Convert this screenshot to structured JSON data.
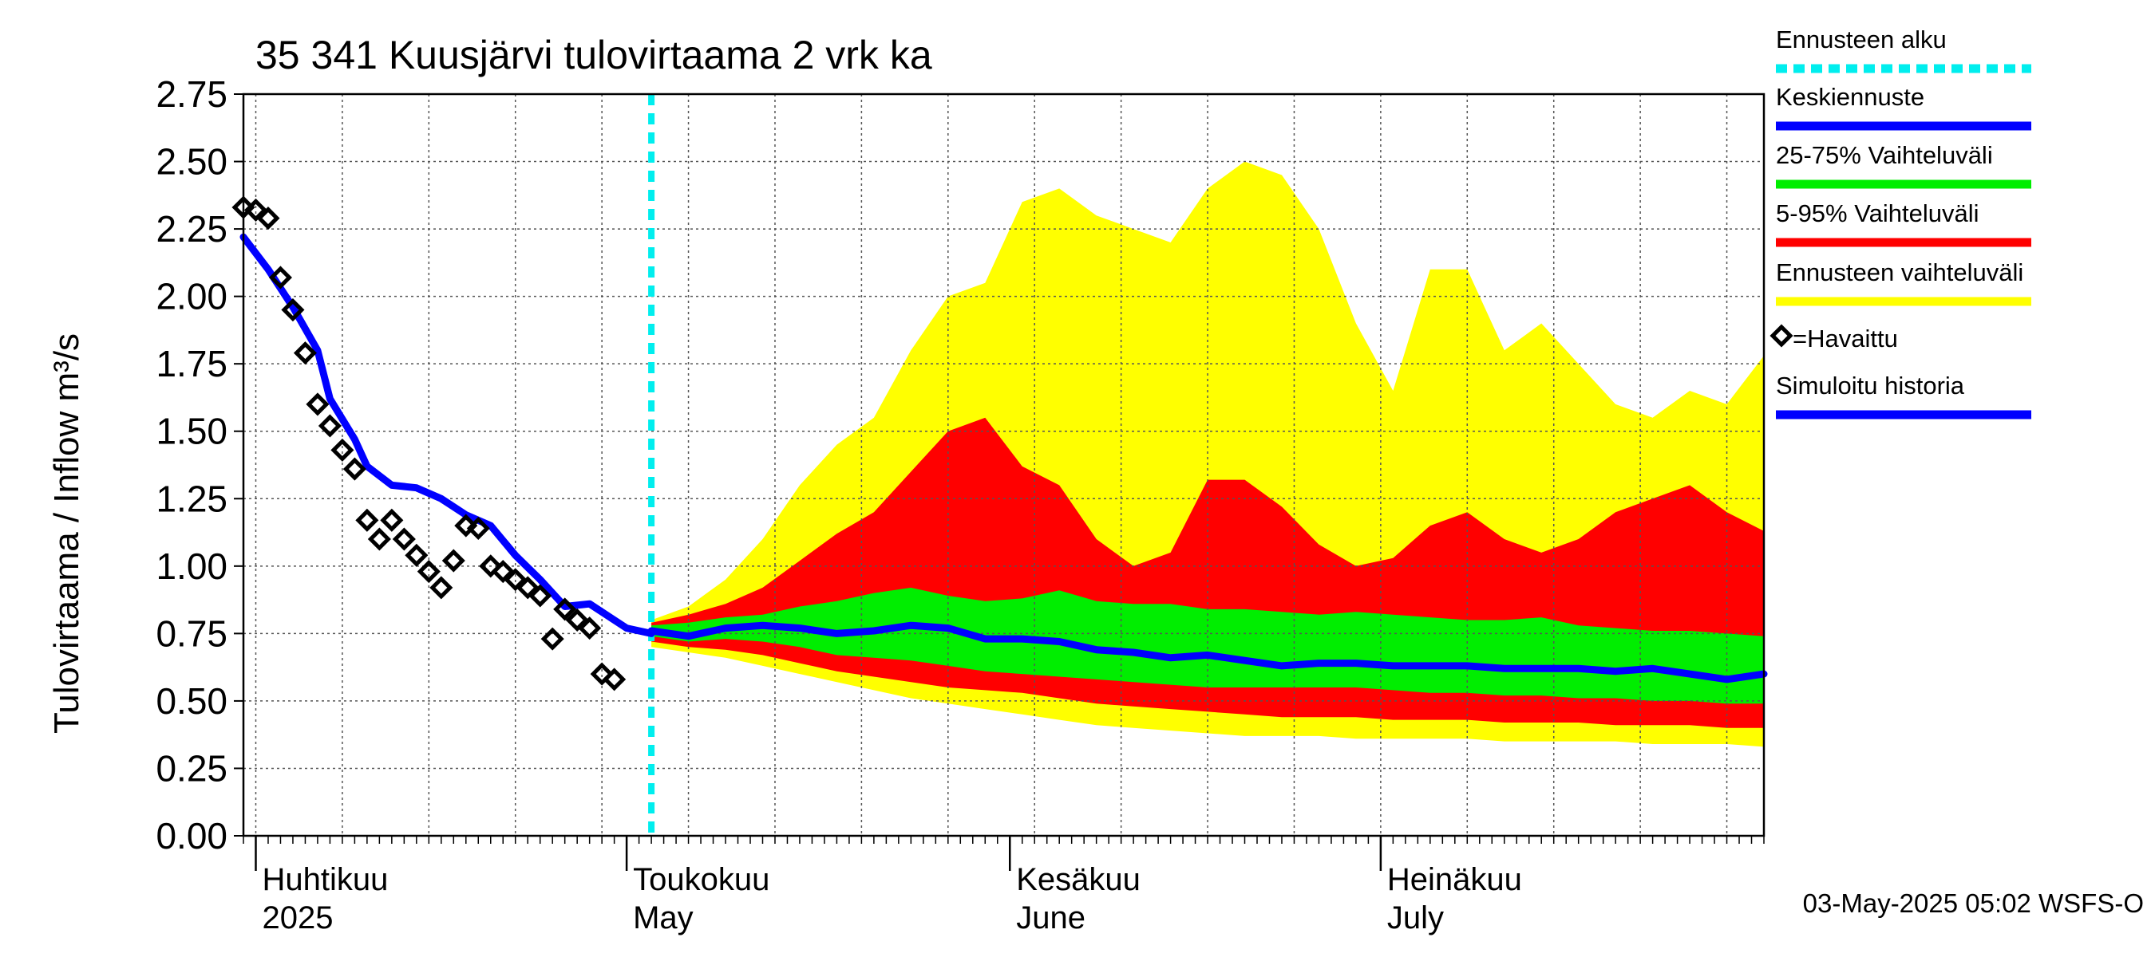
{
  "chart_data": {
    "type": "area",
    "title": "35 341 Kuusjärvi tulovirtaama 2 vrk ka",
    "ylabel": "Tulovirtaama / Inflow    m³/s",
    "ylim": [
      0,
      2.75
    ],
    "yticks": [
      "0.00",
      "0.25",
      "0.50",
      "0.75",
      "1.00",
      "1.25",
      "1.50",
      "1.75",
      "2.00",
      "2.25",
      "2.50",
      "2.75"
    ],
    "xlim": [
      "2025-03-31",
      "2025-08-01"
    ],
    "grid": true,
    "legend_position": "right",
    "months": [
      {
        "start": "2025-04-01",
        "label_fi": "Huhtikuu",
        "label_en": "2025"
      },
      {
        "start": "2025-05-01",
        "label_fi": "Toukokuu",
        "label_en": "May"
      },
      {
        "start": "2025-06-01",
        "label_fi": "Kesäkuu",
        "label_en": "June"
      },
      {
        "start": "2025-07-01",
        "label_fi": "Heinäkuu",
        "label_en": "July"
      }
    ],
    "forecast_start": "2025-05-03",
    "observed": {
      "name": "=Havaittu",
      "x": [
        "2025-03-31",
        "2025-04-01",
        "2025-04-02",
        "2025-04-03",
        "2025-04-04",
        "2025-04-05",
        "2025-04-06",
        "2025-04-07",
        "2025-04-08",
        "2025-04-09",
        "2025-04-10",
        "2025-04-11",
        "2025-04-12",
        "2025-04-13",
        "2025-04-14",
        "2025-04-15",
        "2025-04-16",
        "2025-04-17",
        "2025-04-18",
        "2025-04-19",
        "2025-04-20",
        "2025-04-21",
        "2025-04-22",
        "2025-04-23",
        "2025-04-24",
        "2025-04-25",
        "2025-04-26",
        "2025-04-27",
        "2025-04-28",
        "2025-04-29",
        "2025-04-30",
        "2025-05-01",
        "2025-05-02"
      ],
      "values": [
        2.33,
        2.32,
        2.29,
        2.07,
        1.95,
        1.79,
        1.6,
        1.52,
        1.43,
        1.36,
        1.17,
        1.1,
        1.17,
        1.1,
        1.04,
        0.98,
        0.92,
        1.02,
        1.15,
        1.14,
        1.0,
        0.98,
        0.95,
        0.92,
        0.89,
        0.73,
        0.84,
        0.8,
        0.77,
        0.6,
        0.58,
        null,
        null
      ]
    },
    "simulated_history": {
      "name": "Simuloitu historia",
      "x": [
        "2025-03-31",
        "2025-04-02",
        "2025-04-04",
        "2025-04-06",
        "2025-04-07",
        "2025-04-09",
        "2025-04-10",
        "2025-04-12",
        "2025-04-14",
        "2025-04-16",
        "2025-04-18",
        "2025-04-20",
        "2025-04-22",
        "2025-04-24",
        "2025-04-26",
        "2025-04-28",
        "2025-05-01",
        "2025-05-03"
      ],
      "values": [
        2.22,
        2.1,
        1.96,
        1.8,
        1.62,
        1.47,
        1.37,
        1.3,
        1.29,
        1.25,
        1.19,
        1.15,
        1.04,
        0.95,
        0.85,
        0.86,
        0.77,
        0.75
      ]
    },
    "forecast_dates": [
      "2025-05-03",
      "2025-05-06",
      "2025-05-09",
      "2025-05-12",
      "2025-05-15",
      "2025-05-18",
      "2025-05-21",
      "2025-05-24",
      "2025-05-27",
      "2025-05-30",
      "2025-06-02",
      "2025-06-05",
      "2025-06-08",
      "2025-06-11",
      "2025-06-14",
      "2025-06-17",
      "2025-06-20",
      "2025-06-23",
      "2025-06-26",
      "2025-06-29",
      "2025-07-02",
      "2025-07-05",
      "2025-07-08",
      "2025-07-11",
      "2025-07-14",
      "2025-07-17",
      "2025-07-20",
      "2025-07-23",
      "2025-07-26",
      "2025-07-29",
      "2025-08-01"
    ],
    "series": [
      {
        "name": "Keskiennuste",
        "color": "#0000ff",
        "values": [
          0.76,
          0.74,
          0.77,
          0.78,
          0.77,
          0.75,
          0.76,
          0.78,
          0.77,
          0.73,
          0.73,
          0.72,
          0.69,
          0.68,
          0.66,
          0.67,
          0.65,
          0.63,
          0.64,
          0.64,
          0.63,
          0.63,
          0.63,
          0.62,
          0.62,
          0.62,
          0.61,
          0.62,
          0.6,
          0.58,
          0.6
        ]
      },
      {
        "name": "25-75% Vaihteluväli",
        "color": "#00ee00",
        "lower": [
          0.74,
          0.72,
          0.73,
          0.72,
          0.7,
          0.67,
          0.66,
          0.65,
          0.63,
          0.61,
          0.6,
          0.59,
          0.58,
          0.57,
          0.56,
          0.55,
          0.55,
          0.55,
          0.55,
          0.55,
          0.54,
          0.53,
          0.53,
          0.52,
          0.52,
          0.51,
          0.51,
          0.5,
          0.5,
          0.49,
          0.49
        ],
        "upper": [
          0.78,
          0.79,
          0.81,
          0.82,
          0.85,
          0.87,
          0.9,
          0.92,
          0.89,
          0.87,
          0.88,
          0.91,
          0.87,
          0.86,
          0.86,
          0.84,
          0.84,
          0.83,
          0.82,
          0.83,
          0.82,
          0.81,
          0.8,
          0.8,
          0.81,
          0.78,
          0.77,
          0.76,
          0.76,
          0.75,
          0.74
        ]
      },
      {
        "name": "5-95% Vaihteluväli",
        "color": "#ff0000",
        "lower": [
          0.72,
          0.7,
          0.69,
          0.67,
          0.64,
          0.61,
          0.59,
          0.57,
          0.55,
          0.54,
          0.53,
          0.51,
          0.49,
          0.48,
          0.47,
          0.46,
          0.45,
          0.44,
          0.44,
          0.44,
          0.43,
          0.43,
          0.43,
          0.42,
          0.42,
          0.42,
          0.41,
          0.41,
          0.41,
          0.4,
          0.4
        ],
        "upper": [
          0.79,
          0.82,
          0.86,
          0.92,
          1.02,
          1.12,
          1.2,
          1.35,
          1.5,
          1.55,
          1.37,
          1.3,
          1.1,
          1.0,
          1.05,
          1.32,
          1.32,
          1.22,
          1.08,
          1.0,
          1.03,
          1.15,
          1.2,
          1.1,
          1.05,
          1.1,
          1.2,
          1.25,
          1.3,
          1.2,
          1.13
        ]
      },
      {
        "name": "Ennusteen vaihteluväli",
        "color": "#ffff00",
        "lower": [
          0.7,
          0.68,
          0.66,
          0.63,
          0.6,
          0.57,
          0.54,
          0.51,
          0.49,
          0.47,
          0.45,
          0.43,
          0.41,
          0.4,
          0.39,
          0.38,
          0.37,
          0.37,
          0.37,
          0.36,
          0.36,
          0.36,
          0.36,
          0.35,
          0.35,
          0.35,
          0.35,
          0.34,
          0.34,
          0.34,
          0.33
        ],
        "upper": [
          0.8,
          0.85,
          0.95,
          1.1,
          1.3,
          1.45,
          1.55,
          1.8,
          2.0,
          2.05,
          2.35,
          2.4,
          2.3,
          2.25,
          2.2,
          2.4,
          2.5,
          2.45,
          2.25,
          1.9,
          1.65,
          2.1,
          2.1,
          1.8,
          1.9,
          1.75,
          1.6,
          1.55,
          1.65,
          1.6,
          1.78
        ]
      }
    ],
    "legend": [
      {
        "label": "Ennusteen alku",
        "color": "#00eeee",
        "style": "dashed"
      },
      {
        "label": "Keskiennuste",
        "color": "#0000ff",
        "style": "line"
      },
      {
        "label": "25-75% Vaihteluväli",
        "color": "#00ee00",
        "style": "line"
      },
      {
        "label": "5-95% Vaihteluväli",
        "color": "#ff0000",
        "style": "line"
      },
      {
        "label": "Ennusteen vaihteluväli",
        "color": "#ffff00",
        "style": "line"
      },
      {
        "label": "=Havaittu",
        "color": "#000000",
        "style": "diamond"
      },
      {
        "label": "Simuloitu historia",
        "color": "#0000ff",
        "style": "line"
      }
    ],
    "footer": "03-May-2025 05:02 WSFS-O"
  }
}
